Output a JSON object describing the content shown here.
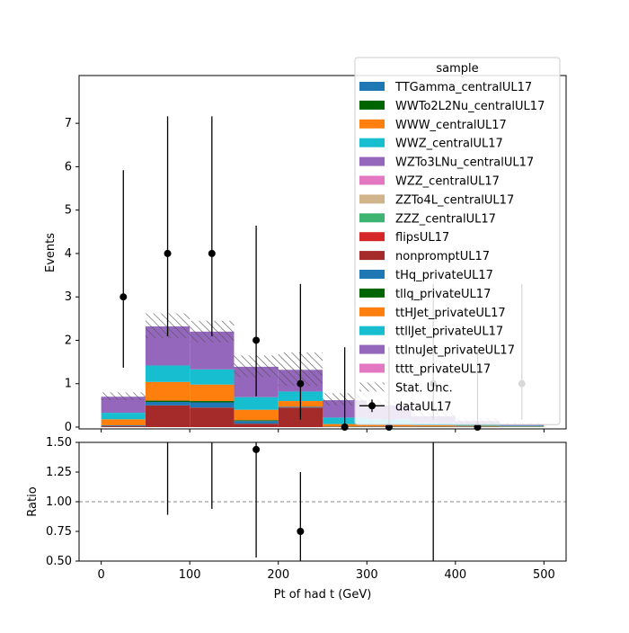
{
  "chart_data": {
    "type": "bar",
    "stacked": true,
    "bin_edges": [
      0,
      50,
      100,
      150,
      200,
      250,
      300,
      350,
      400,
      450,
      500
    ],
    "series": [
      {
        "name": "TTGamma_centralUL17",
        "color": "#1f77b4",
        "values": [
          0,
          0,
          0,
          0,
          0,
          0,
          0,
          0,
          0,
          0
        ]
      },
      {
        "name": "WWTo2L2Nu_centralUL17",
        "color": "#006400",
        "values": [
          0,
          0,
          0,
          0,
          0,
          0,
          0,
          0,
          0,
          0
        ]
      },
      {
        "name": "WWW_centralUL17",
        "color": "#ff7f0e",
        "values": [
          0,
          0,
          0,
          0,
          0,
          0,
          0,
          0,
          0,
          0
        ]
      },
      {
        "name": "WWZ_centralUL17",
        "color": "#17becf",
        "values": [
          0,
          0,
          0,
          0,
          0,
          0,
          0,
          0,
          0,
          0
        ]
      },
      {
        "name": "WZTo3LNu_centralUL17",
        "color": "#9467bd",
        "values": [
          0,
          0,
          0,
          0,
          0,
          0,
          0,
          0,
          0,
          0
        ]
      },
      {
        "name": "WZZ_centralUL17",
        "color": "#e377c2",
        "values": [
          0,
          0,
          0,
          0,
          0,
          0,
          0,
          0,
          0,
          0
        ]
      },
      {
        "name": "ZZTo4L_centralUL17",
        "color": "#d2b48c",
        "values": [
          0,
          0,
          0,
          0,
          0,
          0,
          0,
          0,
          0,
          0
        ]
      },
      {
        "name": "ZZZ_centralUL17",
        "color": "#3cb371",
        "values": [
          0,
          0,
          0,
          0,
          0,
          0,
          0,
          0,
          0,
          0
        ]
      },
      {
        "name": "flipsUL17",
        "color": "#d62728",
        "values": [
          0,
          0,
          0,
          0,
          0,
          0,
          0,
          0,
          0,
          0
        ]
      },
      {
        "name": "nonpromptUL17",
        "color": "#a52a2a",
        "values": [
          0.02,
          0.5,
          0.45,
          0.08,
          0.45,
          0,
          0,
          0,
          0,
          0
        ]
      },
      {
        "name": "tHq_privateUL17",
        "color": "#1f77b4",
        "values": [
          0.02,
          0.08,
          0.12,
          0.06,
          0.02,
          0.01,
          0.01,
          0.01,
          0.01,
          0
        ]
      },
      {
        "name": "tllq_privateUL17",
        "color": "#006400",
        "values": [
          0,
          0.03,
          0.03,
          0.02,
          0,
          0,
          0,
          0,
          0,
          0
        ]
      },
      {
        "name": "ttHJet_privateUL17",
        "color": "#ff7f0e",
        "values": [
          0.14,
          0.43,
          0.38,
          0.24,
          0.13,
          0.06,
          0.05,
          0.03,
          0.02,
          0.01
        ]
      },
      {
        "name": "ttllJet_privateUL17",
        "color": "#17becf",
        "values": [
          0.15,
          0.38,
          0.35,
          0.29,
          0.22,
          0.15,
          0.12,
          0.06,
          0.05,
          0.02
        ]
      },
      {
        "name": "ttlnuJet_privateUL17",
        "color": "#9467bd",
        "values": [
          0.37,
          0.9,
          0.87,
          0.7,
          0.5,
          0.4,
          0.32,
          0.15,
          0.06,
          0.04
        ]
      },
      {
        "name": "tttt_privateUL17",
        "color": "#e377c2",
        "values": [
          0,
          0,
          0,
          0,
          0,
          0,
          0,
          0,
          0,
          0
        ]
      }
    ],
    "stat_unc": {
      "label": "Stat. Unc.",
      "low": [
        0.62,
        2.05,
        1.95,
        1.15,
        0.95,
        0.5,
        0.42,
        0.18,
        0.08,
        0.04
      ],
      "high": [
        0.8,
        2.62,
        2.45,
        1.65,
        1.72,
        0.78,
        0.62,
        0.35,
        0.2,
        0.1
      ]
    },
    "data": {
      "name": "dataUL17",
      "x": [
        25,
        75,
        125,
        175,
        225,
        275,
        325,
        375,
        425,
        475
      ],
      "y": [
        3,
        4,
        4,
        2,
        1,
        0,
        0,
        1,
        0,
        1
      ],
      "yerr_low": [
        1.63,
        1.91,
        1.91,
        1.29,
        0.83,
        0,
        0,
        0.83,
        0,
        0.83
      ],
      "yerr_high": [
        2.92,
        3.16,
        3.16,
        2.64,
        2.3,
        1.84,
        1.84,
        2.3,
        1.84,
        2.3
      ]
    },
    "ratio": {
      "x": [
        75,
        125,
        175,
        225,
        375
      ],
      "y": [
        1.53,
        1.63,
        1.44,
        0.75,
        2.86
      ],
      "yerr_low": [
        0.64,
        0.69,
        0.91,
        0.79,
        2.4
      ],
      "yerr_high": [
        0.5,
        0.5,
        0.5,
        0.5,
        0.5
      ]
    },
    "ylabel": "Events",
    "ratio_ylabel": "Ratio",
    "xlabel": "Pt of had t (GeV)",
    "xlim": [
      -25,
      525
    ],
    "ylim": [
      0,
      7.5
    ],
    "ratio_ylim": [
      0.5,
      1.5
    ],
    "xticks": [
      0,
      100,
      200,
      300,
      400,
      500
    ],
    "yticks": [
      0,
      1,
      2,
      3,
      4,
      5,
      6,
      7
    ],
    "ratio_yticks": [
      "0.50",
      "0.75",
      "1.00",
      "1.25",
      "1.50"
    ],
    "legend": {
      "title": "sample",
      "placement": "top-right"
    }
  }
}
